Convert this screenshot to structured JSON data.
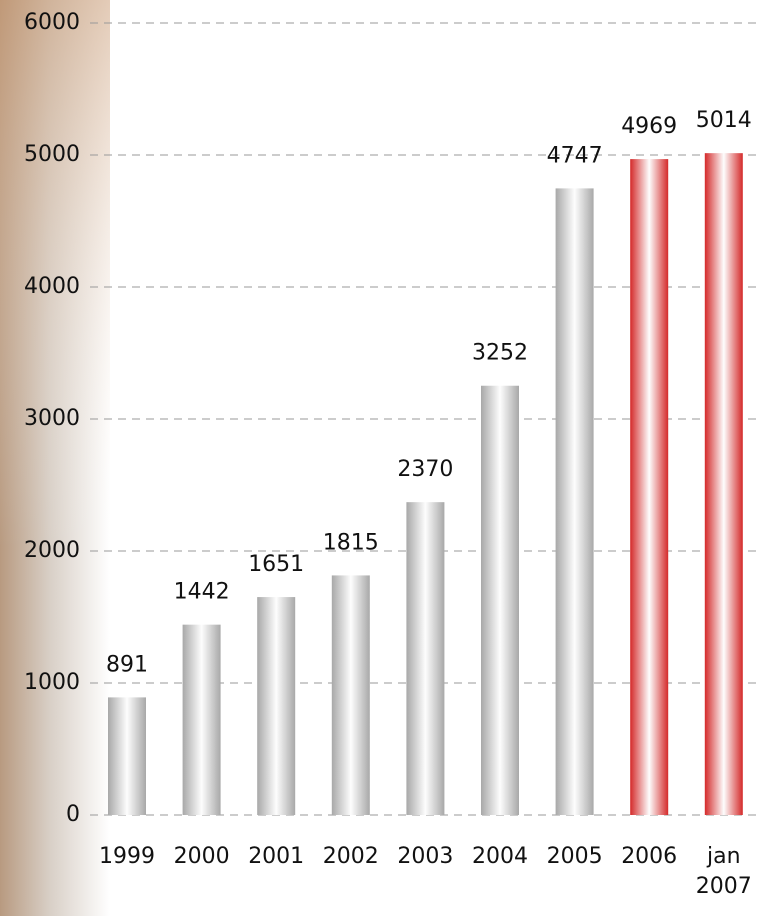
{
  "chart_data": {
    "type": "bar",
    "categories": [
      "1999",
      "2000",
      "2001",
      "2002",
      "2003",
      "2004",
      "2005",
      "2006",
      "jan 2007"
    ],
    "values": [
      891,
      1442,
      1651,
      1815,
      2370,
      3252,
      4747,
      4969,
      5014
    ],
    "colors": [
      "#a8a8a8",
      "#a8a8a8",
      "#a8a8a8",
      "#a8a8a8",
      "#a8a8a8",
      "#a8a8a8",
      "#a8a8a8",
      "#d42a2a",
      "#d42a2a"
    ],
    "ylim": [
      0,
      6000
    ],
    "yticks": [
      0,
      1000,
      2000,
      3000,
      4000,
      5000,
      6000
    ],
    "grid": true
  }
}
